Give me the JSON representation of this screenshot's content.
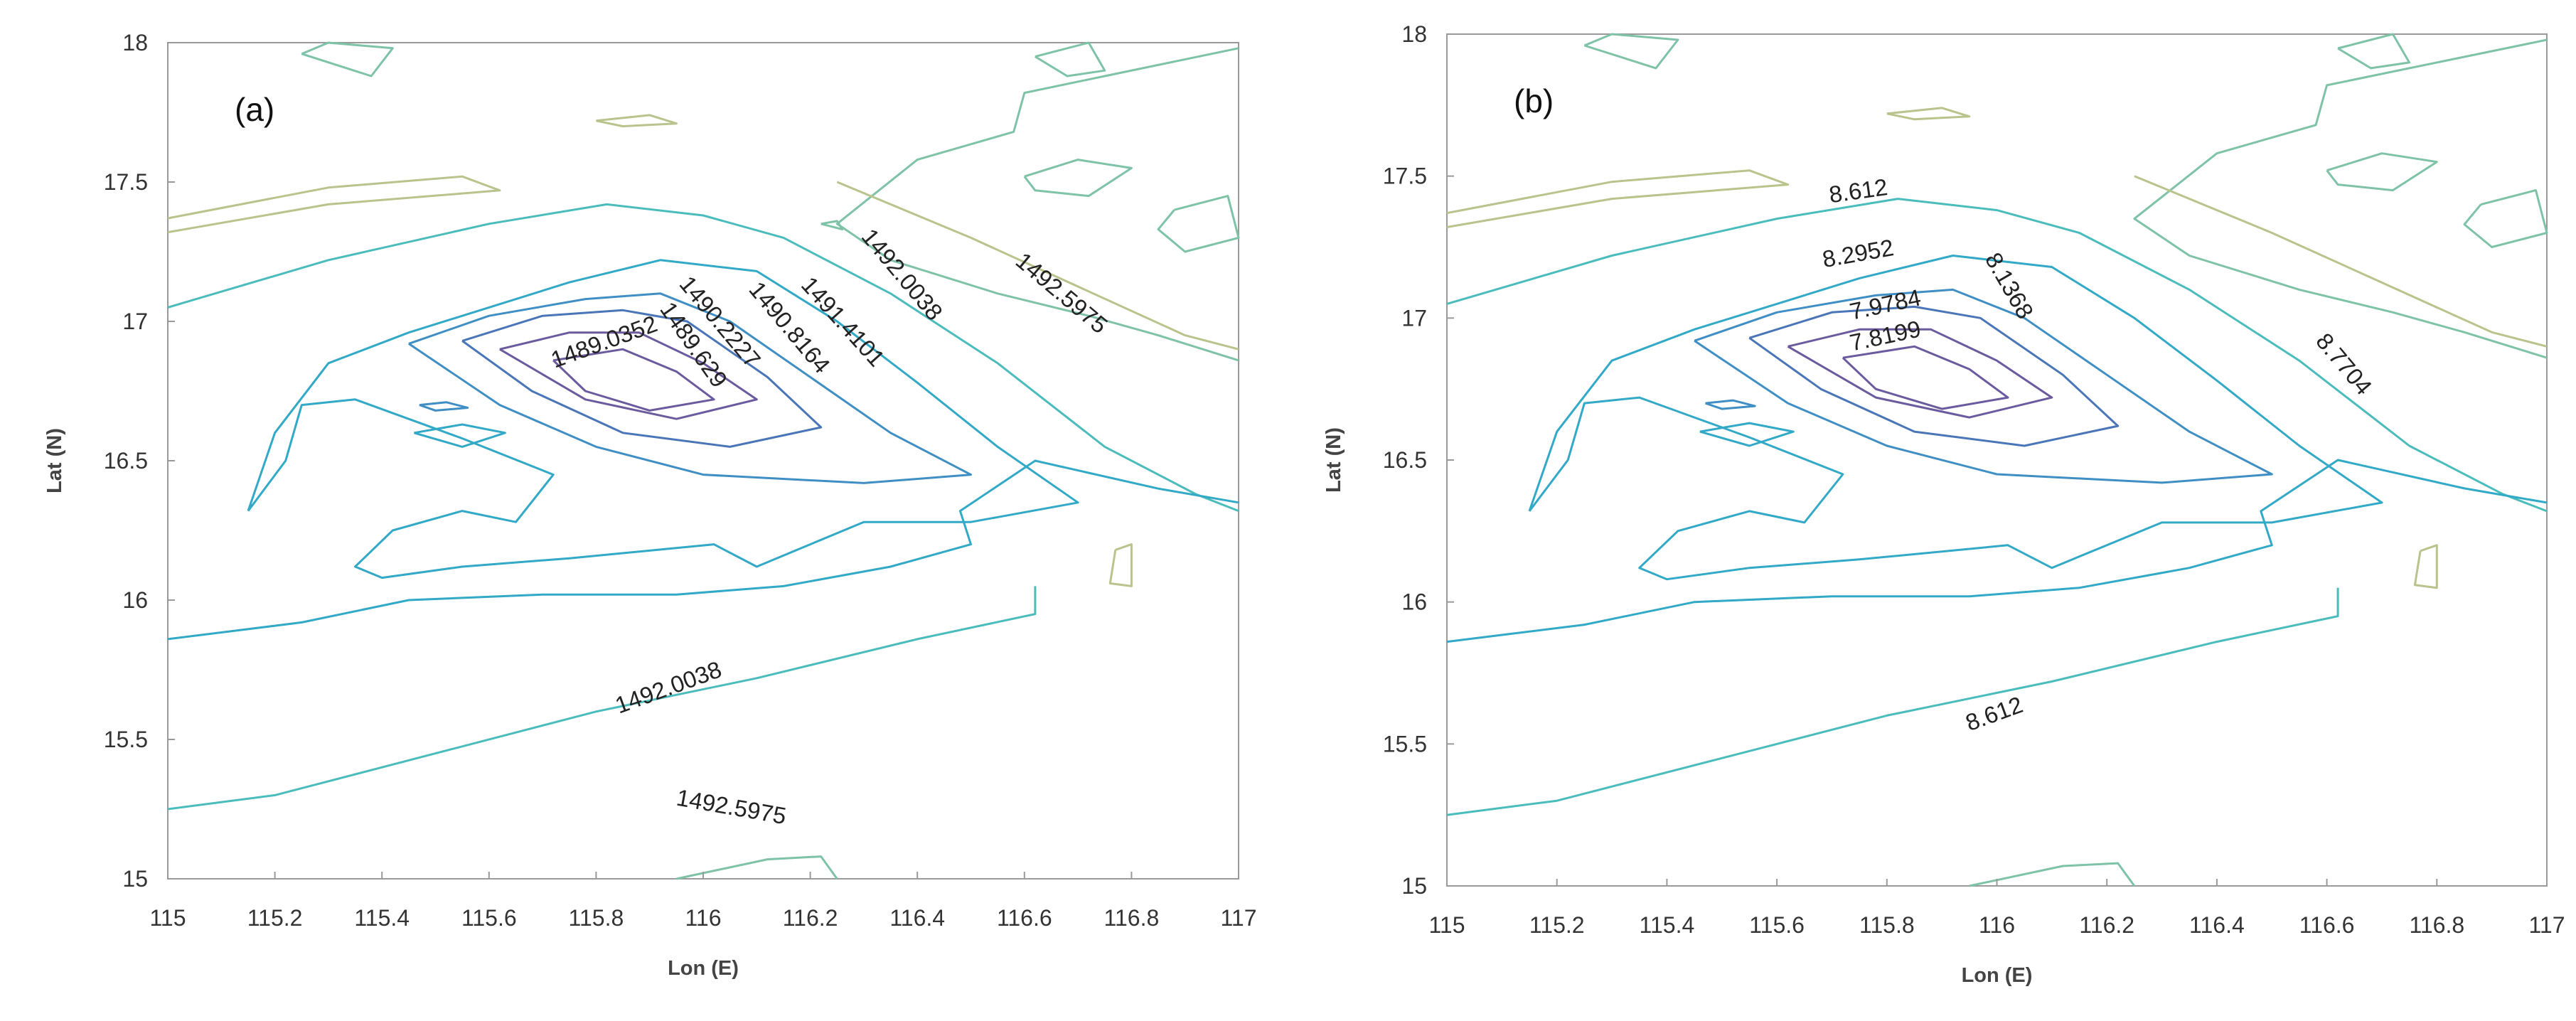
{
  "chart_data": [
    {
      "type": "contour",
      "panel_label": "(a)",
      "xlabel": "Lon (E)",
      "ylabel": "Lat (N)",
      "xlim": [
        115,
        117
      ],
      "ylim": [
        15,
        18
      ],
      "xticks": [
        "115",
        "115.2",
        "115.4",
        "115.6",
        "115.8",
        "116",
        "116.2",
        "116.4",
        "116.6",
        "116.8",
        "117"
      ],
      "yticks": [
        "15",
        "15.5",
        "16",
        "16.5",
        "17",
        "17.5",
        "18"
      ],
      "grid": false,
      "contour_labels": [
        {
          "text": "1489.0352",
          "x": 115.82,
          "y": 16.9,
          "rotate": -20
        },
        {
          "text": "1489.629",
          "x": 115.97,
          "y": 16.9,
          "rotate": 55
        },
        {
          "text": "1490.2227",
          "x": 116.02,
          "y": 16.98,
          "rotate": 50
        },
        {
          "text": "1490.8164",
          "x": 116.15,
          "y": 16.96,
          "rotate": 50
        },
        {
          "text": "1491.4101",
          "x": 116.25,
          "y": 16.98,
          "rotate": 48
        },
        {
          "text": "1492.0038",
          "x": 116.36,
          "y": 17.15,
          "rotate": 50
        },
        {
          "text": "1492.5975",
          "x": 116.66,
          "y": 17.08,
          "rotate": 40
        },
        {
          "text": "1492.0038",
          "x": 115.94,
          "y": 15.66,
          "rotate": -20
        },
        {
          "text": "1492.5975",
          "x": 116.05,
          "y": 15.23,
          "rotate": 10
        }
      ]
    },
    {
      "type": "contour",
      "panel_label": "(b)",
      "xlabel": "Lon (E)",
      "ylabel": "Lat (N)",
      "xlim": [
        115,
        117
      ],
      "ylim": [
        15,
        18
      ],
      "xticks": [
        "115",
        "115.2",
        "115.4",
        "115.6",
        "115.8",
        "116",
        "116.2",
        "116.4",
        "116.6",
        "116.8",
        "117"
      ],
      "yticks": [
        "15",
        "15.5",
        "16",
        "16.5",
        "17",
        "17.5",
        "18"
      ],
      "grid": false,
      "contour_labels": [
        {
          "text": "8.612",
          "x": 115.75,
          "y": 17.42,
          "rotate": -8
        },
        {
          "text": "8.2952",
          "x": 115.75,
          "y": 17.2,
          "rotate": -10
        },
        {
          "text": "8.1368",
          "x": 116.01,
          "y": 17.1,
          "rotate": 60
        },
        {
          "text": "7.9784",
          "x": 115.8,
          "y": 17.02,
          "rotate": -12
        },
        {
          "text": "7.8199",
          "x": 115.8,
          "y": 16.91,
          "rotate": -12
        },
        {
          "text": "8.7704",
          "x": 116.62,
          "y": 16.82,
          "rotate": 50
        },
        {
          "text": "8.612",
          "x": 116.0,
          "y": 15.58,
          "rotate": -20
        }
      ]
    }
  ],
  "colors": {
    "c1": "#6b5a9e",
    "c2": "#4a76b8",
    "c3": "#3f8fc4",
    "c4": "#32a9c6",
    "c5": "#4bbcbc",
    "c6": "#7ec3a8",
    "c7": "#b8c48c",
    "axis": "#9a9a9a"
  }
}
